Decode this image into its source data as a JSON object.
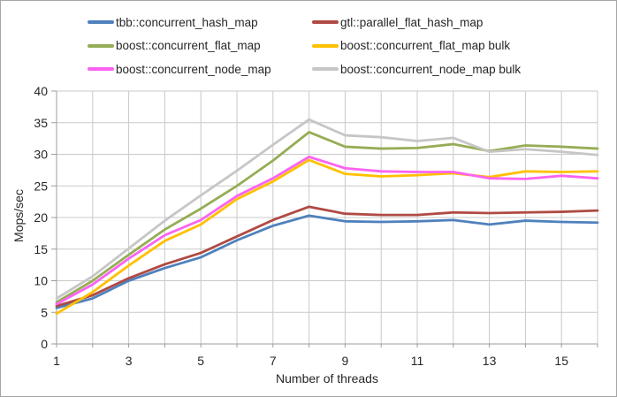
{
  "chart_data": {
    "type": "line",
    "title": "",
    "xlabel": "Number of threads",
    "ylabel": "Mops/sec",
    "xlim": [
      1,
      16
    ],
    "ylim": [
      0,
      40
    ],
    "y_ticks": [
      0,
      5,
      10,
      15,
      20,
      25,
      30,
      35,
      40
    ],
    "x_tick_labels": [
      1,
      3,
      5,
      7,
      9,
      11,
      13,
      15
    ],
    "grid": true,
    "legend_position": "top",
    "x": [
      1,
      2,
      3,
      4,
      5,
      6,
      7,
      8,
      9,
      10,
      11,
      12,
      13,
      14,
      15,
      16
    ],
    "series": [
      {
        "name": "tbb::concurrent_hash_map",
        "color": "#4F81BD",
        "values": [
          5.7,
          7.2,
          10.0,
          12.0,
          13.7,
          16.4,
          18.7,
          20.3,
          19.4,
          19.3,
          19.4,
          19.6,
          18.9,
          19.5,
          19.3,
          19.2
        ]
      },
      {
        "name": "gtl::parallel_flat_hash_map",
        "color": "#B04A44",
        "values": [
          6.0,
          7.7,
          10.4,
          12.6,
          14.4,
          17.0,
          19.6,
          21.7,
          20.6,
          20.4,
          20.4,
          20.8,
          20.7,
          20.8,
          20.9,
          21.1
        ]
      },
      {
        "name": "boost::concurrent_flat_map",
        "color": "#95AD55",
        "values": [
          6.6,
          10.0,
          14.1,
          18.1,
          21.4,
          25.0,
          29.0,
          33.5,
          31.2,
          30.9,
          31.0,
          31.6,
          30.5,
          31.4,
          31.2,
          30.9
        ]
      },
      {
        "name": "boost::concurrent_flat_map bulk",
        "color": "#FFC000",
        "values": [
          4.8,
          8.2,
          12.4,
          16.3,
          18.9,
          22.9,
          25.7,
          29.1,
          26.9,
          26.5,
          26.7,
          27.0,
          26.4,
          27.3,
          27.2,
          27.3
        ]
      },
      {
        "name": "boost::concurrent_node_map",
        "color": "#FB63F0",
        "values": [
          6.3,
          9.4,
          13.5,
          17.2,
          19.6,
          23.4,
          26.2,
          29.6,
          27.8,
          27.3,
          27.2,
          27.2,
          26.2,
          26.1,
          26.6,
          26.2
        ]
      },
      {
        "name": "boost::concurrent_node_map bulk",
        "color": "#C6C6C6",
        "values": [
          7.2,
          10.7,
          15.1,
          19.5,
          23.5,
          27.4,
          31.5,
          35.5,
          33.0,
          32.7,
          32.1,
          32.6,
          30.4,
          30.8,
          30.4,
          29.9
        ]
      }
    ]
  }
}
